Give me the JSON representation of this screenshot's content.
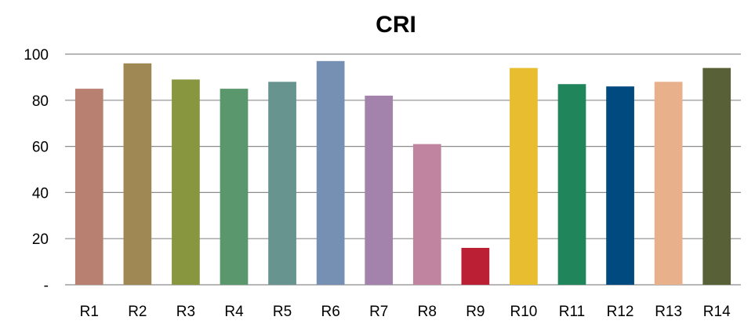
{
  "chart_data": {
    "type": "bar",
    "title": "CRI",
    "categories": [
      "R1",
      "R2",
      "R3",
      "R4",
      "R5",
      "R6",
      "R7",
      "R8",
      "R9",
      "R10",
      "R11",
      "R12",
      "R13",
      "R14"
    ],
    "values": [
      85,
      96,
      89,
      85,
      88,
      97,
      82,
      61,
      16,
      94,
      87,
      86,
      88,
      94
    ],
    "colors": [
      "#b88070",
      "#a08855",
      "#88973f",
      "#5b976c",
      "#68948f",
      "#7690b4",
      "#a382ab",
      "#c083a0",
      "#bb1f33",
      "#e8be30",
      "#21855b",
      "#004a80",
      "#e8b18b",
      "#586037"
    ],
    "ylim": [
      0,
      100
    ],
    "yticks": [
      "-",
      "20",
      "40",
      "60",
      "80",
      "100"
    ],
    "grid": true,
    "legend": "none"
  }
}
